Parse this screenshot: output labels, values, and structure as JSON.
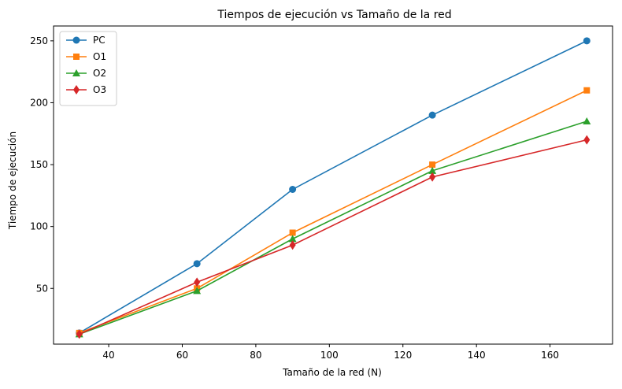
{
  "chart_data": {
    "type": "line",
    "title": "Tiempos de ejecución vs Tamaño de la red",
    "xlabel": "Tamaño de la red (N)",
    "ylabel": "Tiempo de ejecución",
    "x": [
      32,
      64,
      90,
      128,
      170
    ],
    "xlim": [
      25,
      177
    ],
    "ylim": [
      5,
      262
    ],
    "xticks": [
      40,
      60,
      80,
      100,
      120,
      140,
      160
    ],
    "yticks": [
      50,
      100,
      150,
      200,
      250
    ],
    "grid": false,
    "legend_position": "upper-left",
    "series": [
      {
        "name": "PC",
        "values": [
          14,
          70,
          130,
          190,
          250
        ],
        "color": "#1f77b4",
        "marker": "circle"
      },
      {
        "name": "O1",
        "values": [
          14,
          50,
          95,
          150,
          210
        ],
        "color": "#ff7f0e",
        "marker": "square"
      },
      {
        "name": "O2",
        "values": [
          13,
          48,
          90,
          145,
          185
        ],
        "color": "#2ca02c",
        "marker": "triangle"
      },
      {
        "name": "O3",
        "values": [
          13,
          55,
          85,
          140,
          170
        ],
        "color": "#d62728",
        "marker": "diamond"
      }
    ]
  }
}
